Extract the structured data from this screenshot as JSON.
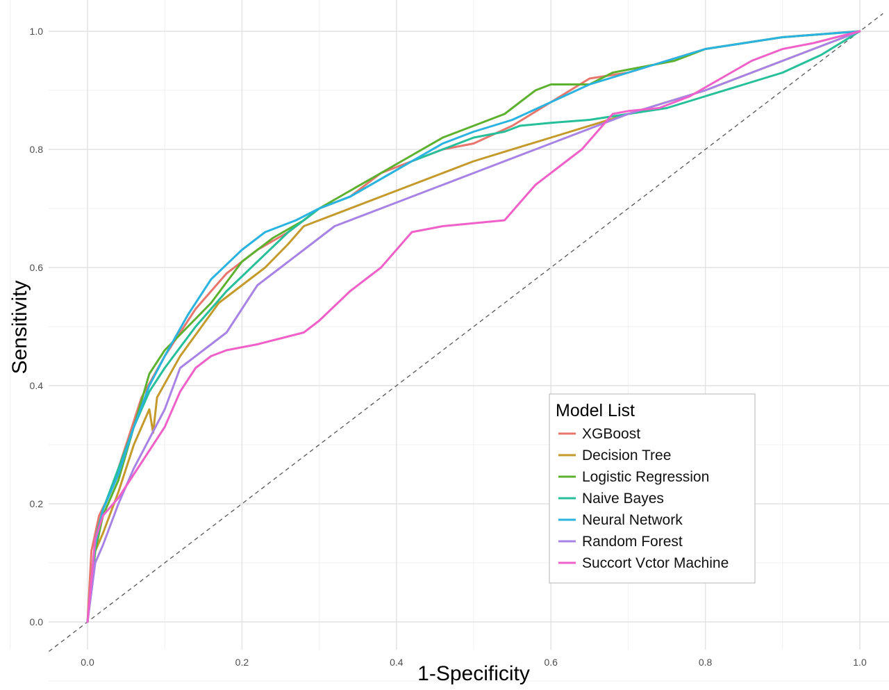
{
  "chart_data": {
    "type": "line",
    "title": "",
    "xlabel": "1-Specificity",
    "ylabel": "Sensitivity",
    "xlim": [
      -0.05,
      1.03
    ],
    "ylim": [
      -0.05,
      1.02
    ],
    "x_ticks": [
      "0.0",
      "0.2",
      "0.4",
      "0.6",
      "0.8",
      "1.0"
    ],
    "y_ticks": [
      "0.0",
      "0.2",
      "0.4",
      "0.6",
      "0.8",
      "1.0"
    ],
    "grid": true,
    "reference_line": "dashed diagonal",
    "legend": {
      "title": "Model List",
      "position": "bottom-right inside"
    },
    "series": [
      {
        "name": "XGBoost",
        "color": "#e8766d",
        "x": [
          0,
          0.005,
          0.015,
          0.03,
          0.05,
          0.07,
          0.1,
          0.14,
          0.18,
          0.22,
          0.26,
          0.3,
          0.34,
          0.38,
          0.42,
          0.46,
          0.5,
          0.55,
          0.6,
          0.65,
          0.7,
          0.75,
          0.8,
          0.85,
          0.9,
          0.95,
          1.0
        ],
        "y": [
          0,
          0.12,
          0.18,
          0.22,
          0.3,
          0.38,
          0.45,
          0.53,
          0.59,
          0.63,
          0.66,
          0.7,
          0.72,
          0.76,
          0.78,
          0.8,
          0.81,
          0.84,
          0.88,
          0.92,
          0.93,
          0.95,
          0.97,
          0.98,
          0.99,
          0.995,
          1.0
        ]
      },
      {
        "name": "Decision Tree",
        "color": "#c49a2c",
        "x": [
          0,
          0.01,
          0.02,
          0.04,
          0.06,
          0.08,
          0.085,
          0.09,
          0.12,
          0.17,
          0.23,
          0.26,
          0.28,
          0.3,
          0.4,
          0.5,
          0.6,
          0.7,
          0.8,
          0.9,
          1.0
        ],
        "y": [
          0,
          0.12,
          0.15,
          0.22,
          0.3,
          0.36,
          0.32,
          0.38,
          0.45,
          0.54,
          0.6,
          0.64,
          0.67,
          0.68,
          0.73,
          0.78,
          0.82,
          0.86,
          0.9,
          0.95,
          1.0
        ],
        "x_note": ""
      },
      {
        "name": "Logistic Regression",
        "color": "#5db12f",
        "x": [
          0,
          0.01,
          0.02,
          0.04,
          0.06,
          0.08,
          0.1,
          0.13,
          0.16,
          0.2,
          0.24,
          0.28,
          0.3,
          0.34,
          0.38,
          0.42,
          0.46,
          0.5,
          0.54,
          0.56,
          0.58,
          0.6,
          0.65,
          0.68,
          0.72,
          0.76,
          0.8,
          0.85,
          0.9,
          0.95,
          1.0
        ],
        "y": [
          0,
          0.12,
          0.18,
          0.24,
          0.33,
          0.42,
          0.46,
          0.5,
          0.54,
          0.61,
          0.65,
          0.68,
          0.7,
          0.73,
          0.76,
          0.79,
          0.82,
          0.84,
          0.86,
          0.88,
          0.9,
          0.91,
          0.91,
          0.93,
          0.94,
          0.95,
          0.97,
          0.98,
          0.99,
          0.995,
          1.0
        ]
      },
      {
        "name": "Naive Bayes",
        "color": "#26bf9a",
        "x": [
          0,
          0.01,
          0.02,
          0.04,
          0.06,
          0.08,
          0.1,
          0.14,
          0.18,
          0.22,
          0.26,
          0.3,
          0.34,
          0.38,
          0.42,
          0.46,
          0.5,
          0.54,
          0.56,
          0.6,
          0.65,
          0.7,
          0.75,
          0.8,
          0.85,
          0.9,
          0.95,
          1.0
        ],
        "y": [
          0,
          0.14,
          0.19,
          0.26,
          0.33,
          0.39,
          0.43,
          0.5,
          0.56,
          0.61,
          0.66,
          0.7,
          0.72,
          0.75,
          0.78,
          0.8,
          0.82,
          0.83,
          0.84,
          0.845,
          0.85,
          0.86,
          0.87,
          0.89,
          0.91,
          0.93,
          0.96,
          1.0
        ]
      },
      {
        "name": "Neural Network",
        "color": "#2ab3e0",
        "x": [
          0,
          0.01,
          0.02,
          0.04,
          0.06,
          0.08,
          0.1,
          0.13,
          0.16,
          0.2,
          0.23,
          0.27,
          0.3,
          0.34,
          0.38,
          0.42,
          0.46,
          0.5,
          0.55,
          0.6,
          0.65,
          0.7,
          0.75,
          0.8,
          0.85,
          0.9,
          0.95,
          1.0
        ],
        "y": [
          0,
          0.13,
          0.19,
          0.25,
          0.33,
          0.4,
          0.45,
          0.52,
          0.58,
          0.63,
          0.66,
          0.68,
          0.7,
          0.72,
          0.75,
          0.78,
          0.81,
          0.83,
          0.85,
          0.88,
          0.91,
          0.93,
          0.95,
          0.97,
          0.98,
          0.99,
          0.995,
          1.0
        ]
      },
      {
        "name": "Random Forest",
        "color": "#a883e6",
        "x": [
          0,
          0.01,
          0.02,
          0.04,
          0.06,
          0.08,
          0.1,
          0.12,
          0.15,
          0.18,
          0.2,
          0.22,
          0.25,
          0.28,
          0.32,
          0.4,
          0.5,
          0.6,
          0.7,
          0.8,
          0.9,
          1.0
        ],
        "y": [
          0,
          0.1,
          0.13,
          0.2,
          0.26,
          0.31,
          0.36,
          0.43,
          0.46,
          0.49,
          0.53,
          0.57,
          0.6,
          0.63,
          0.67,
          0.71,
          0.76,
          0.81,
          0.86,
          0.9,
          0.95,
          1.0
        ]
      },
      {
        "name": "Succort Vctor Machine",
        "color": "#ef61c8",
        "x": [
          0,
          0.01,
          0.02,
          0.04,
          0.06,
          0.08,
          0.1,
          0.12,
          0.14,
          0.16,
          0.18,
          0.22,
          0.25,
          0.28,
          0.3,
          0.34,
          0.36,
          0.38,
          0.4,
          0.42,
          0.46,
          0.5,
          0.54,
          0.56,
          0.58,
          0.6,
          0.62,
          0.64,
          0.66,
          0.68,
          0.7,
          0.74,
          0.78,
          0.82,
          0.86,
          0.9,
          0.94,
          0.97,
          1.0
        ],
        "y": [
          0,
          0.14,
          0.18,
          0.21,
          0.25,
          0.29,
          0.33,
          0.39,
          0.43,
          0.45,
          0.46,
          0.47,
          0.48,
          0.49,
          0.51,
          0.56,
          0.58,
          0.6,
          0.63,
          0.66,
          0.67,
          0.675,
          0.68,
          0.71,
          0.74,
          0.76,
          0.78,
          0.8,
          0.83,
          0.86,
          0.865,
          0.87,
          0.89,
          0.92,
          0.95,
          0.97,
          0.98,
          0.99,
          1.0
        ]
      }
    ]
  }
}
